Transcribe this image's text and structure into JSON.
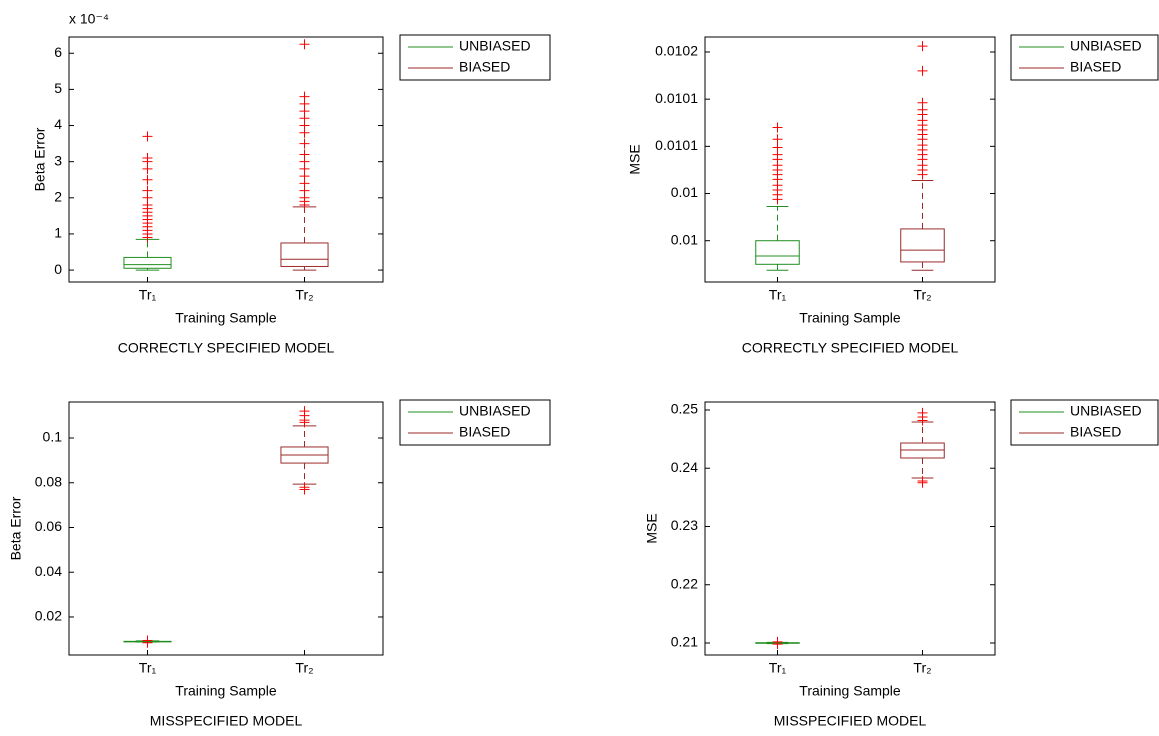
{
  "chart_data": [
    {
      "type": "box",
      "title": "CORRECTLY SPECIFIED MODEL",
      "xlabel": "Training Sample",
      "ylabel": "Beta Error",
      "y_exponent": "x 10⁻⁴",
      "categories": [
        "Tr₁",
        "Tr₂"
      ],
      "ylim": [
        -0.33,
        6.45
      ],
      "yticks": [
        0,
        1,
        2,
        3,
        4,
        5,
        6
      ],
      "legend": "outside-right",
      "outlier_color": "#ff0000",
      "series": [
        {
          "name": "UNBIASED",
          "color": "#1f8f1f",
          "values": [
            {
              "whisker_low": 0,
              "q1": 0.05,
              "median": 0.15,
              "q3": 0.35,
              "whisker_high": 0.85,
              "outliers": [
                0.9,
                1.0,
                1.1,
                1.2,
                1.3,
                1.4,
                1.5,
                1.6,
                1.7,
                1.8,
                2.0,
                2.2,
                2.5,
                2.8,
                3.0,
                3.1,
                3.7
              ]
            },
            null
          ]
        },
        {
          "name": "BIASED",
          "color": "#9c2a2a",
          "values": [
            null,
            {
              "whisker_low": 0,
              "q1": 0.1,
              "median": 0.3,
              "q3": 0.75,
              "whisker_high": 1.75,
              "outliers": [
                1.8,
                1.9,
                2.0,
                2.2,
                2.4,
                2.6,
                2.8,
                3.0,
                3.2,
                3.5,
                3.8,
                4.0,
                4.2,
                4.4,
                4.6,
                4.8,
                6.25
              ]
            }
          ]
        }
      ]
    },
    {
      "type": "box",
      "title": "CORRECTLY SPECIFIED MODEL",
      "xlabel": "Training Sample",
      "ylabel": "MSE",
      "categories": [
        "Tr₁",
        "Tr₂"
      ],
      "ylim": [
        0.009965,
        0.0101727
      ],
      "yticks": [
        {
          "value": 0.01,
          "label": "0.01"
        },
        {
          "value": 0.01004,
          "label": "0.01"
        },
        {
          "value": 0.01008,
          "label": "0.0101"
        },
        {
          "value": 0.01012,
          "label": "0.0101"
        },
        {
          "value": 0.01016,
          "label": "0.0102"
        }
      ],
      "legend": "outside-right",
      "outlier_color": "#ff0000",
      "series": [
        {
          "name": "UNBIASED",
          "color": "#1f8f1f",
          "values": [
            {
              "whisker_low": 0.009975,
              "q1": 0.00998,
              "median": 0.009987,
              "q3": 0.01,
              "whisker_high": 0.010029,
              "outliers": [
                0.010035,
                0.010039,
                0.010043,
                0.010047,
                0.010052,
                0.010056,
                0.01006,
                0.010064,
                0.010069,
                0.010073,
                0.010079,
                0.010086,
                0.010096
              ]
            },
            null
          ]
        },
        {
          "name": "BIASED",
          "color": "#9c2a2a",
          "values": [
            null,
            {
              "whisker_low": 0.009975,
              "q1": 0.009982,
              "median": 0.009992,
              "q3": 0.01001,
              "whisker_high": 0.010051,
              "outliers": [
                0.010056,
                0.01006,
                0.010064,
                0.010069,
                0.010073,
                0.010077,
                0.010081,
                0.010086,
                0.01009,
                0.010094,
                0.010098,
                0.010102,
                0.010107,
                0.010111,
                0.010117,
                0.010144,
                0.010165
              ]
            }
          ]
        }
      ]
    },
    {
      "type": "box",
      "title": "MISSPECIFIED MODEL",
      "xlabel": "Training Sample",
      "ylabel": "Beta Error",
      "categories": [
        "Tr₁",
        "Tr₂"
      ],
      "ylim": [
        0.003,
        0.1161
      ],
      "yticks": [
        0.02,
        0.04,
        0.06,
        0.08,
        0.1
      ],
      "legend": "outside-right",
      "outlier_color": "#ff0000",
      "series": [
        {
          "name": "UNBIASED",
          "color": "#1f8f1f",
          "values": [
            {
              "whisker_low": 0.0088,
              "q1": 0.0089,
              "median": 0.009,
              "q3": 0.0091,
              "whisker_high": 0.0093,
              "outliers": [
                0.0085,
                0.0095
              ]
            },
            null
          ]
        },
        {
          "name": "BIASED",
          "color": "#9c2a2a",
          "values": [
            null,
            {
              "whisker_low": 0.0794,
              "q1": 0.0888,
              "median": 0.0924,
              "q3": 0.096,
              "whisker_high": 0.1054,
              "outliers": [
                0.077,
                0.078,
                0.107,
                0.108,
                0.11,
                0.112
              ]
            }
          ]
        }
      ]
    },
    {
      "type": "box",
      "title": "MISSPECIFIED MODEL",
      "xlabel": "Training Sample",
      "ylabel": "MSE",
      "categories": [
        "Tr₁",
        "Tr₂"
      ],
      "ylim": [
        0.20794,
        0.25137
      ],
      "yticks": [
        0.21,
        0.22,
        0.23,
        0.24,
        0.25
      ],
      "legend": "outside-right",
      "outlier_color": "#ff0000",
      "series": [
        {
          "name": "UNBIASED",
          "color": "#1f8f1f",
          "values": [
            {
              "whisker_low": 0.2099,
              "q1": 0.20995,
              "median": 0.21,
              "q3": 0.21005,
              "whisker_high": 0.2101,
              "outliers": [
                0.2098,
                0.2102
              ]
            },
            null
          ]
        },
        {
          "name": "BIASED",
          "color": "#9c2a2a",
          "values": [
            null,
            {
              "whisker_low": 0.23833,
              "q1": 0.24176,
              "median": 0.24313,
              "q3": 0.24433,
              "whisker_high": 0.24794,
              "outliers": [
                0.2375,
                0.2378,
                0.2482,
                0.2488,
                0.2495
              ]
            }
          ]
        }
      ]
    }
  ]
}
